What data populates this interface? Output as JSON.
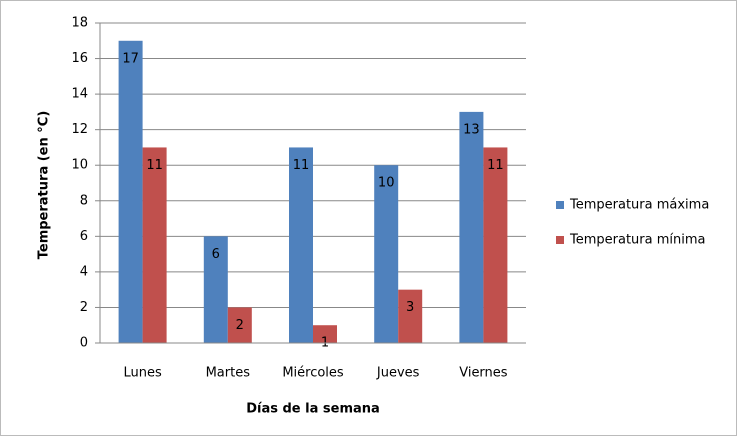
{
  "chart_data": {
    "type": "bar",
    "categories": [
      "Lunes",
      "Martes",
      "Miércoles",
      "Jueves",
      "Viernes"
    ],
    "series": [
      {
        "name": "Temperatura máxima",
        "color": "#4f81bd",
        "values": [
          17,
          6,
          11,
          10,
          13
        ]
      },
      {
        "name": "Temperatura mínima",
        "color": "#c0504d",
        "values": [
          11,
          2,
          1,
          3,
          11
        ]
      }
    ],
    "ylim": [
      0,
      18
    ],
    "yticks": [
      0,
      2,
      4,
      6,
      8,
      10,
      12,
      14,
      16,
      18
    ],
    "y_label": "Temperatura (en °C)",
    "x_label": "Días de la semana",
    "grid": true,
    "legend": "right"
  }
}
